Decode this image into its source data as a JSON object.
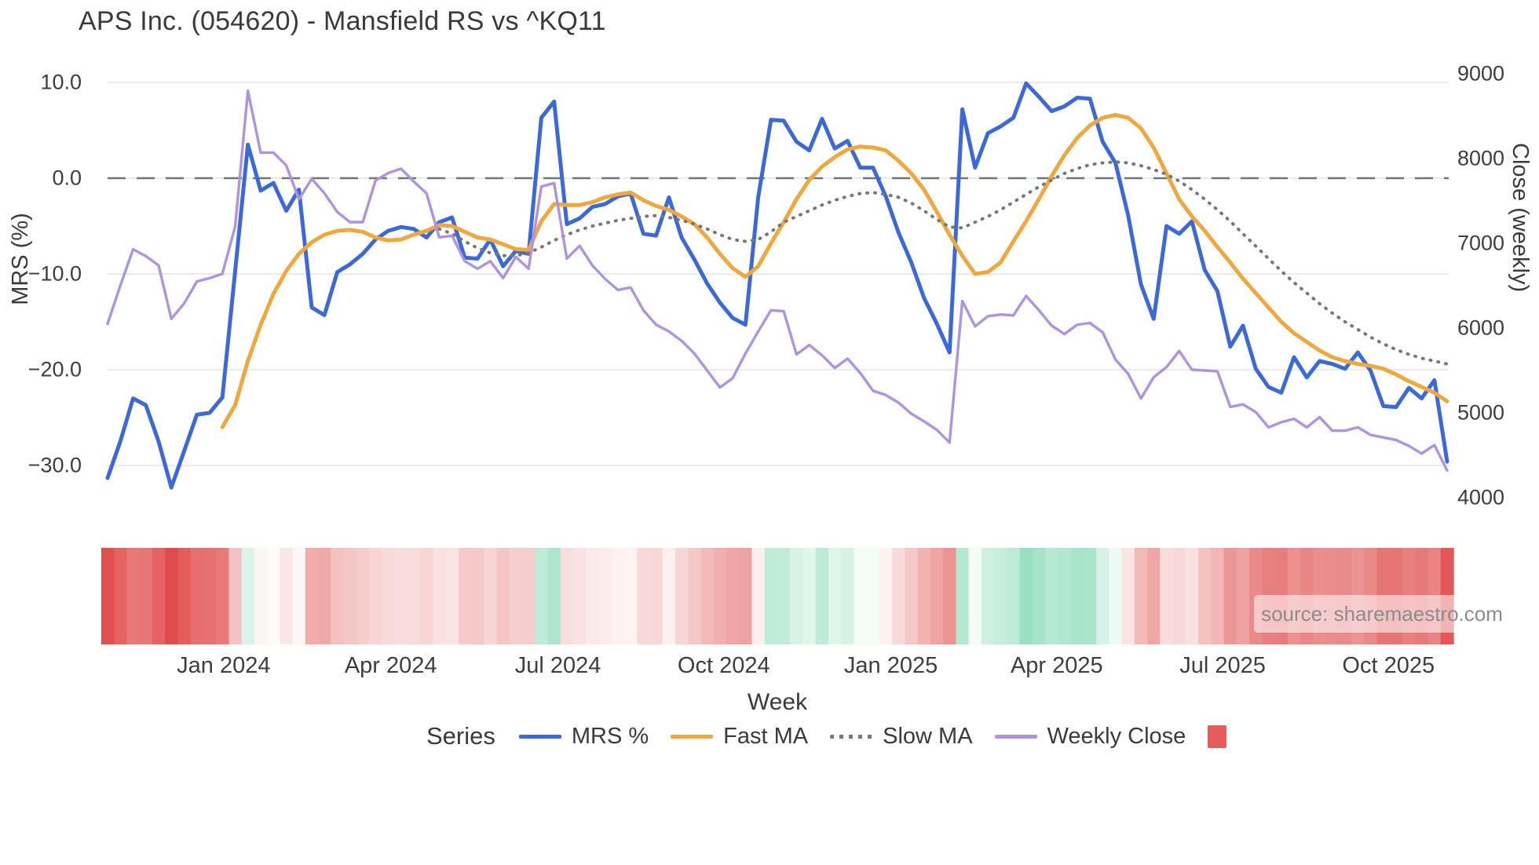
{
  "title": "APS Inc. (054620) - Mansfield RS vs ^KQ11",
  "watermark": {
    "text": "source: sharemaestro.com"
  },
  "axes": {
    "left": {
      "label": "MRS (%)",
      "ticks": [
        10.0,
        0.0,
        -10.0,
        -20.0,
        -30.0
      ],
      "tick_labels": [
        "10.0",
        "0.0",
        "−10.0",
        "−20.0",
        "−30.0"
      ]
    },
    "right": {
      "label": "Close (weekly)",
      "ticks": [
        9000,
        8000,
        7000,
        6000,
        5000,
        4000
      ],
      "tick_labels": [
        "9000",
        "8000",
        "7000",
        "6000",
        "5000",
        "4000"
      ]
    },
    "x": {
      "label": "Week",
      "tick_labels": [
        "Jan 2024",
        "Apr 2024",
        "Jul 2024",
        "Oct 2024",
        "Jan 2025",
        "Apr 2025",
        "Jul 2025",
        "Oct 2025"
      ],
      "tick_week_index": [
        9.1,
        22.2,
        35.3,
        48.3,
        61.4,
        74.4,
        87.4,
        100.4
      ]
    }
  },
  "legend": {
    "title": "Series",
    "items": [
      {
        "label": "MRS %",
        "color": "#3b69d8",
        "style": "line"
      },
      {
        "label": "Fast MA",
        "color": "#efa73e",
        "style": "line"
      },
      {
        "label": "Slow MA",
        "color": "#777777",
        "style": "dotted"
      },
      {
        "label": "Weekly Close",
        "color": "#ae93df",
        "style": "line"
      },
      {
        "label": "",
        "color": "#e45c5c",
        "style": "square"
      }
    ]
  },
  "colors": {
    "grid": "#e9ebee",
    "zero_line": "#70757b",
    "heat_negative": "#e04b4b",
    "heat_positive": "#82d9b3"
  },
  "chart_data": {
    "type": "line",
    "x_unit": "week_index",
    "n_weeks": 106,
    "left_axis_range": [
      -34,
      12.5
    ],
    "right_axis_range": [
      3900,
      9150
    ],
    "zero_reference_line": 0,
    "grid": true,
    "legend_position": "bottom",
    "series": [
      {
        "name": "MRS %",
        "axis": "left",
        "color": "#3b69d8",
        "width": 5,
        "dash": "solid",
        "values": [
          -31.3,
          -27.5,
          -23.0,
          -23.7,
          -27.5,
          -32.3,
          -28.5,
          -24.7,
          -24.5,
          -22.9,
          -9.7,
          3.5,
          -1.3,
          -0.5,
          -3.4,
          -1.2,
          -13.5,
          -14.3,
          -9.8,
          -9.0,
          -7.9,
          -6.4,
          -5.5,
          -5.1,
          -5.3,
          -6.2,
          -4.6,
          -4.1,
          -8.3,
          -8.4,
          -6.4,
          -9.2,
          -7.6,
          -7.9,
          6.3,
          8.0,
          -4.8,
          -4.2,
          -3.0,
          -2.7,
          -1.9,
          -1.6,
          -5.8,
          -6.0,
          -2.0,
          -6.2,
          -8.5,
          -11.0,
          -13.0,
          -14.6,
          -15.3,
          -2.0,
          6.1,
          6.0,
          3.8,
          2.9,
          6.2,
          3.1,
          3.9,
          1.1,
          1.1,
          -1.9,
          -5.7,
          -8.8,
          -12.5,
          -15.2,
          -18.2,
          7.2,
          1.1,
          4.7,
          5.4,
          6.3,
          9.9,
          8.5,
          7.0,
          7.5,
          8.4,
          8.3,
          3.8,
          1.6,
          -3.9,
          -11.1,
          -14.7,
          -5.0,
          -5.8,
          -4.5,
          -9.6,
          -11.8,
          -17.6,
          -15.4,
          -19.9,
          -21.8,
          -22.4,
          -18.7,
          -20.8,
          -19.1,
          -19.4,
          -19.9,
          -18.2,
          -20.1,
          -23.8,
          -23.9,
          -21.9,
          -23.0,
          -21.1,
          -29.6
        ]
      },
      {
        "name": "Fast MA",
        "axis": "left",
        "color": "#efa73e",
        "width": 5,
        "dash": "solid",
        "values": [
          null,
          null,
          null,
          null,
          null,
          null,
          null,
          null,
          null,
          -26.0,
          -23.7,
          -19.1,
          -15.3,
          -12.1,
          -9.7,
          -7.9,
          -6.7,
          -5.9,
          -5.5,
          -5.4,
          -5.6,
          -6.2,
          -6.5,
          -6.4,
          -5.9,
          -5.5,
          -4.9,
          -5.0,
          -5.6,
          -6.2,
          -6.4,
          -6.9,
          -7.4,
          -7.5,
          -4.5,
          -2.7,
          -2.8,
          -2.8,
          -2.5,
          -2.0,
          -1.7,
          -1.5,
          -2.3,
          -2.9,
          -3.3,
          -4.0,
          -4.8,
          -6.2,
          -7.9,
          -9.4,
          -10.3,
          -9.2,
          -6.8,
          -4.6,
          -2.2,
          -0.2,
          1.2,
          2.2,
          3.0,
          3.3,
          3.2,
          2.9,
          1.8,
          0.5,
          -1.2,
          -3.5,
          -5.9,
          -8.1,
          -10.0,
          -9.8,
          -8.8,
          -6.6,
          -4.5,
          -2.2,
          0.2,
          2.4,
          4.2,
          5.5,
          6.3,
          6.6,
          6.3,
          5.2,
          3.2,
          0.5,
          -2.2,
          -4.0,
          -5.5,
          -7.2,
          -8.8,
          -10.5,
          -12.0,
          -13.5,
          -15.0,
          -16.2,
          -17.1,
          -18.0,
          -18.7,
          -19.1,
          -19.4,
          -19.6,
          -19.9,
          -20.5,
          -21.2,
          -21.8,
          -22.4,
          -23.3
        ]
      },
      {
        "name": "Slow MA",
        "axis": "left",
        "color": "#777777",
        "width": 4,
        "dash": "dotted",
        "values": [
          null,
          null,
          null,
          null,
          null,
          null,
          null,
          null,
          null,
          null,
          null,
          null,
          null,
          null,
          null,
          null,
          null,
          null,
          null,
          null,
          null,
          null,
          null,
          null,
          null,
          null,
          -5.3,
          -5.8,
          -6.6,
          -7.3,
          -7.8,
          -8.1,
          -8.1,
          -7.8,
          -7.2,
          -6.5,
          -5.9,
          -5.4,
          -5.0,
          -4.7,
          -4.4,
          -4.2,
          -4.0,
          -3.9,
          -4.1,
          -4.4,
          -4.8,
          -5.3,
          -5.9,
          -6.4,
          -6.6,
          -6.4,
          -5.6,
          -4.6,
          -4.0,
          -3.4,
          -2.8,
          -2.3,
          -1.9,
          -1.6,
          -1.5,
          -1.7,
          -2.0,
          -2.6,
          -3.4,
          -4.3,
          -5.1,
          -5.2,
          -4.6,
          -4.0,
          -3.3,
          -2.5,
          -1.7,
          -0.9,
          -0.2,
          0.5,
          1.0,
          1.4,
          1.6,
          1.7,
          1.6,
          1.3,
          0.9,
          0.4,
          -0.3,
          -1.2,
          -2.2,
          -3.3,
          -4.5,
          -5.8,
          -7.1,
          -8.4,
          -9.7,
          -10.9,
          -12.0,
          -13.1,
          -14.1,
          -15.0,
          -15.8,
          -16.6,
          -17.3,
          -17.9,
          -18.4,
          -18.8,
          -19.1,
          -19.4
        ]
      },
      {
        "name": "Weekly Close",
        "axis": "right",
        "color": "#ae93df",
        "width": 3.4,
        "dash": "solid",
        "values": [
          6050,
          6500,
          6930,
          6850,
          6740,
          6110,
          6290,
          6550,
          6590,
          6640,
          7200,
          8800,
          8070,
          8070,
          7920,
          7520,
          7760,
          7590,
          7370,
          7250,
          7250,
          7740,
          7830,
          7880,
          7730,
          7590,
          7070,
          7090,
          6790,
          6700,
          6790,
          6590,
          6840,
          6700,
          7670,
          7710,
          6820,
          6970,
          6740,
          6580,
          6450,
          6480,
          6210,
          6040,
          5960,
          5850,
          5700,
          5500,
          5300,
          5410,
          5700,
          5960,
          6210,
          6200,
          5690,
          5800,
          5680,
          5530,
          5640,
          5470,
          5260,
          5210,
          5120,
          4990,
          4900,
          4800,
          4650,
          6320,
          6020,
          6140,
          6160,
          6150,
          6380,
          6210,
          6030,
          5930,
          6040,
          6060,
          5950,
          5630,
          5460,
          5170,
          5420,
          5540,
          5730,
          5510,
          5500,
          5490,
          5070,
          5100,
          5010,
          4830,
          4890,
          4930,
          4830,
          4950,
          4790,
          4790,
          4830,
          4740,
          4710,
          4680,
          4610,
          4520,
          4620,
          4320
        ]
      }
    ],
    "heatmap": {
      "source_series": "MRS %",
      "encoding": "diverging red (negative MRS) to green (positive MRS)"
    }
  }
}
